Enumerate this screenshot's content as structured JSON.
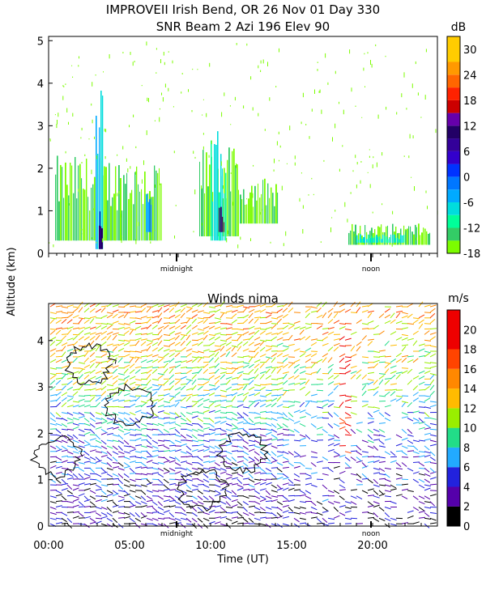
{
  "figure": {
    "title_line1": "IMPROVEII  Irish Bend, OR   26 Nov 01 Day 330",
    "title_line2": "SNR Beam 2 Azi 196 Elev 90",
    "ylabel": "Altitude (km)",
    "xlabel": "Time (UT)"
  },
  "chart_data": [
    {
      "type": "heatmap",
      "panel": "snr",
      "title": "SNR Beam 2 Azi 196 Elev 90",
      "xlabel": "",
      "ylabel": "Altitude (km)",
      "xlim": [
        0,
        24
      ],
      "ylim": [
        0,
        5.1
      ],
      "yticks": [
        0,
        1,
        2,
        3,
        4,
        5
      ],
      "markers": [
        {
          "label": "midnight",
          "x": 7.9
        },
        {
          "label": "noon",
          "x": 19.9
        }
      ],
      "colorbar": {
        "unit": "dB",
        "ticks": [
          30,
          24,
          18,
          12,
          6,
          0,
          -6,
          -12,
          -18
        ],
        "bins": [
          {
            "from": -18,
            "to": -15,
            "color": "#7CFC00"
          },
          {
            "from": -15,
            "to": -12,
            "color": "#33CC66"
          },
          {
            "from": -12,
            "to": -9,
            "color": "#00FF99"
          },
          {
            "from": -9,
            "to": -6,
            "color": "#00DDDD"
          },
          {
            "from": -6,
            "to": -3,
            "color": "#00AAFF"
          },
          {
            "from": -3,
            "to": 0,
            "color": "#0077FF"
          },
          {
            "from": 0,
            "to": 3,
            "color": "#0033FF"
          },
          {
            "from": 3,
            "to": 6,
            "color": "#3300CC"
          },
          {
            "from": 6,
            "to": 9,
            "color": "#330099"
          },
          {
            "from": 9,
            "to": 12,
            "color": "#220066"
          },
          {
            "from": 12,
            "to": 15,
            "color": "#6600AA"
          },
          {
            "from": 15,
            "to": 18,
            "color": "#CC0000"
          },
          {
            "from": 18,
            "to": 21,
            "color": "#FF2200"
          },
          {
            "from": 21,
            "to": 24,
            "color": "#FF6600"
          },
          {
            "from": 24,
            "to": 27,
            "color": "#FF9900"
          },
          {
            "from": 27,
            "to": 33,
            "color": "#FFCC00"
          }
        ]
      },
      "regions": [
        {
          "x0": 0.4,
          "x1": 7.0,
          "y0": 0.3,
          "y1": 2.3,
          "snr": -15
        },
        {
          "x0": 2.9,
          "x1": 3.4,
          "y0": 0.1,
          "y1": 4.0,
          "snr": -6
        },
        {
          "x0": 3.1,
          "x1": 3.3,
          "y0": 0.1,
          "y1": 1.0,
          "snr": 9
        },
        {
          "x0": 6.0,
          "x1": 6.4,
          "y0": 0.5,
          "y1": 1.4,
          "snr": -3
        },
        {
          "x0": 9.3,
          "x1": 11.8,
          "y0": 0.4,
          "y1": 2.5,
          "snr": -15
        },
        {
          "x0": 10.0,
          "x1": 11.0,
          "y0": 0.3,
          "y1": 2.9,
          "snr": -9
        },
        {
          "x0": 10.5,
          "x1": 10.9,
          "y0": 0.5,
          "y1": 1.1,
          "snr": 9
        },
        {
          "x0": 11.8,
          "x1": 14.2,
          "y0": 0.7,
          "y1": 1.8,
          "snr": -15
        },
        {
          "x0": 18.5,
          "x1": 23.6,
          "y0": 0.2,
          "y1": 0.7,
          "snr": -15
        },
        {
          "x0": 19.0,
          "x1": 22.0,
          "y0": 0.25,
          "y1": 0.45,
          "snr": -9
        }
      ]
    },
    {
      "type": "heatmap",
      "panel": "winds",
      "title": "Winds nima",
      "xlabel": "Time (UT)",
      "ylabel": "Altitude (km)",
      "xlim": [
        0,
        24
      ],
      "ylim": [
        0,
        4.8
      ],
      "xticks": [
        0,
        5,
        10,
        15,
        20
      ],
      "xtick_labels": [
        "00:00",
        "05:00",
        "10:00",
        "15:00",
        "20:00"
      ],
      "yticks": [
        0,
        1,
        2,
        3,
        4
      ],
      "markers": [
        {
          "label": "midnight",
          "x": 7.9
        },
        {
          "label": "noon",
          "x": 19.9
        }
      ],
      "colorbar": {
        "unit": "m/s",
        "ticks": [
          20,
          18,
          16,
          14,
          12,
          10,
          8,
          6,
          4,
          2,
          0
        ],
        "bins": [
          {
            "from": 0,
            "to": 2,
            "color": "#000000"
          },
          {
            "from": 2,
            "to": 4,
            "color": "#5500AA"
          },
          {
            "from": 4,
            "to": 6,
            "color": "#2222DD"
          },
          {
            "from": 6,
            "to": 8,
            "color": "#22AAFF"
          },
          {
            "from": 8,
            "to": 10,
            "color": "#22DD88"
          },
          {
            "from": 10,
            "to": 12,
            "color": "#99EE00"
          },
          {
            "from": 12,
            "to": 14,
            "color": "#FFBB00"
          },
          {
            "from": 14,
            "to": 16,
            "color": "#FF8800"
          },
          {
            "from": 16,
            "to": 18,
            "color": "#FF4400"
          },
          {
            "from": 18,
            "to": 22,
            "color": "#EE0000"
          }
        ]
      },
      "speed_profile": {
        "altitudes_km": [
          0.0,
          0.5,
          1.0,
          1.5,
          2.0,
          2.5,
          3.0,
          3.5,
          4.0,
          4.5
        ],
        "speeds_ms": [
          3,
          3,
          4,
          5,
          6,
          8,
          10,
          12,
          13,
          14
        ]
      }
    }
  ]
}
